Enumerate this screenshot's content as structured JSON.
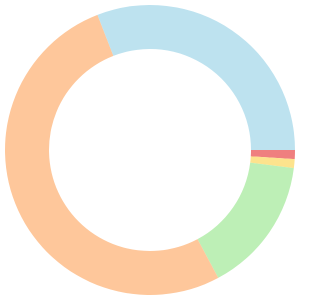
{
  "chart_data": {
    "type": "donut",
    "values": [
      1,
      1,
      15.2,
      51.9,
      30.9
    ],
    "colors": [
      "#ef7f7f",
      "#fde38d",
      "#bdefb6",
      "#fec79b",
      "#bde2ef"
    ]
  }
}
